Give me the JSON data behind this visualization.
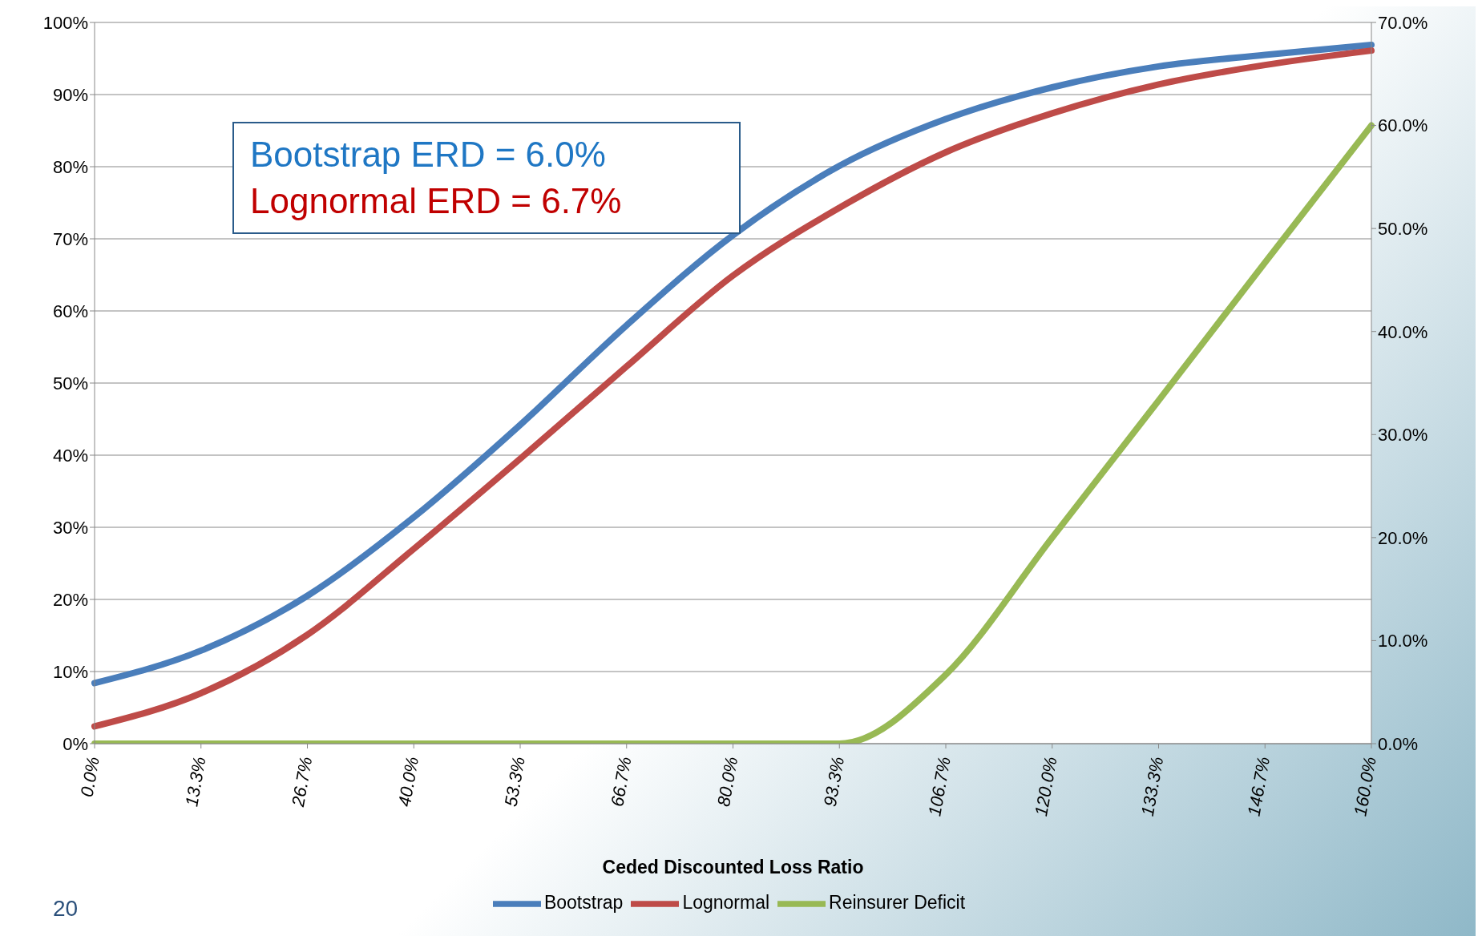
{
  "chart_data": {
    "type": "line",
    "categories": [
      "0.0%",
      "13.3%",
      "26.7%",
      "40.0%",
      "53.3%",
      "66.7%",
      "80.0%",
      "93.3%",
      "106.7%",
      "120.0%",
      "133.3%",
      "146.7%",
      "160.0%"
    ],
    "xlabel": "Ceded Discounted Loss Ratio",
    "series": [
      {
        "name": "Bootstrap",
        "color": "#4a7ebb",
        "values": [
          8.4,
          12.9,
          20.5,
          31.4,
          44.2,
          58,
          70.5,
          80.1,
          86.6,
          91,
          93.9,
          95.5,
          96.9
        ]
      },
      {
        "name": "Lognormal",
        "color": "#be4b48",
        "values": [
          2.4,
          7,
          15.1,
          27,
          39.5,
          52.3,
          64.9,
          74.3,
          82,
          87.4,
          91.4,
          94.1,
          96.1
        ]
      },
      {
        "name": "Reinsurer Deficit",
        "color": "#98b954",
        "axis": "y2",
        "values": [
          0,
          0,
          0,
          0,
          0,
          0,
          0,
          0,
          6.7,
          20,
          33.3,
          46.7,
          60
        ]
      }
    ],
    "ylim": [
      0,
      100
    ],
    "yticks": [
      {
        "value": 0,
        "label": "0%"
      },
      {
        "value": 10,
        "label": "10%"
      },
      {
        "value": 20,
        "label": "20%"
      },
      {
        "value": 30,
        "label": "30%"
      },
      {
        "value": 40,
        "label": "40%"
      },
      {
        "value": 50,
        "label": "50%"
      },
      {
        "value": 60,
        "label": "60%"
      },
      {
        "value": 70,
        "label": "70%"
      },
      {
        "value": 80,
        "label": "80%"
      },
      {
        "value": 90,
        "label": "90%"
      },
      {
        "value": 100,
        "label": "100%"
      }
    ],
    "y2lim": [
      0,
      70
    ],
    "y2ticks": [
      {
        "value": 0,
        "label": "0.0%"
      },
      {
        "value": 10,
        "label": "10.0%"
      },
      {
        "value": 20,
        "label": "20.0%"
      },
      {
        "value": 30,
        "label": "30.0%"
      },
      {
        "value": 40,
        "label": "40.0%"
      },
      {
        "value": 50,
        "label": "50.0%"
      },
      {
        "value": 60,
        "label": "60.0%"
      },
      {
        "value": 70,
        "label": "70.0%"
      }
    ],
    "annotations": [
      "Bootstrap ERD = 6.0%",
      "Lognormal ERD = 6.7%",
      "20"
    ],
    "grid": "y",
    "legend": "bottom",
    "marker": "none",
    "line_style": "solid"
  }
}
